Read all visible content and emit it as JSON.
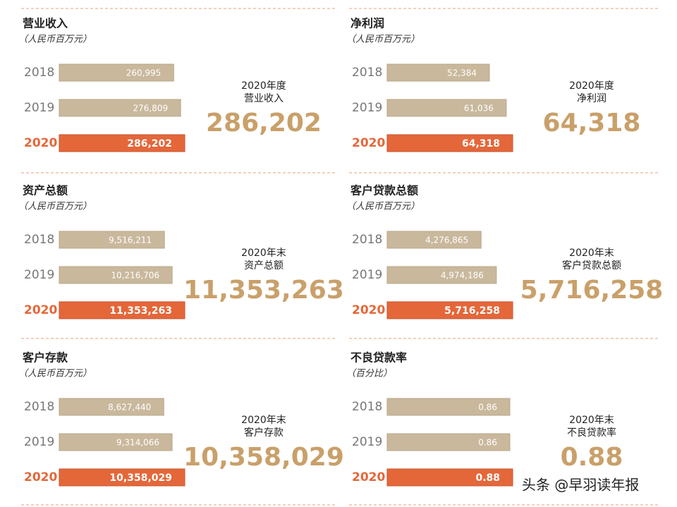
{
  "chart_data": [
    {
      "type": "bar",
      "title": "营业收入",
      "subtitle": "（人民币百万元）",
      "categories": [
        "2018",
        "2019",
        "2020"
      ],
      "values": [
        260995,
        276809,
        286202
      ],
      "value_labels": [
        "260,995",
        "276,809",
        "286,202"
      ],
      "headline": [
        "2020年度",
        "营业收入"
      ],
      "color": "#c9b89c",
      "highlight_color": "#e4673a"
    },
    {
      "type": "bar",
      "title": "净利润",
      "subtitle": "（人民币百万元）",
      "categories": [
        "2018",
        "2019",
        "2020"
      ],
      "values": [
        52384,
        61036,
        64318
      ],
      "value_labels": [
        "52,384",
        "61,036",
        "64,318"
      ],
      "headline": [
        "2020年度",
        "净利润"
      ],
      "color": "#c9b89c",
      "highlight_color": "#e4673a"
    },
    {
      "type": "bar",
      "title": "资产总额",
      "subtitle": "（人民币百万元）",
      "categories": [
        "2018",
        "2019",
        "2020"
      ],
      "values": [
        9516211,
        10216706,
        11353263
      ],
      "value_labels": [
        "9,516,211",
        "10,216,706",
        "11,353,263"
      ],
      "headline": [
        "2020年末",
        "资产总额"
      ],
      "color": "#c9b89c",
      "highlight_color": "#e4673a"
    },
    {
      "type": "bar",
      "title": "客户贷款总额",
      "subtitle": "（人民币百万元）",
      "categories": [
        "2018",
        "2019",
        "2020"
      ],
      "values": [
        4276865,
        4974186,
        5716258
      ],
      "value_labels": [
        "4,276,865",
        "4,974,186",
        "5,716,258"
      ],
      "headline": [
        "2020年末",
        "客户贷款总额"
      ],
      "color": "#c9b89c",
      "highlight_color": "#e4673a"
    },
    {
      "type": "bar",
      "title": "客户存款",
      "subtitle": "（人民币百万元）",
      "categories": [
        "2018",
        "2019",
        "2020"
      ],
      "values": [
        8627440,
        9314066,
        10358029
      ],
      "value_labels": [
        "8,627,440",
        "9,314,066",
        "10,358,029"
      ],
      "headline": [
        "2020年末",
        "客户存款"
      ],
      "color": "#c9b89c",
      "highlight_color": "#e4673a"
    },
    {
      "type": "bar",
      "title": "不良贷款率",
      "subtitle": "（百分比）",
      "categories": [
        "2018",
        "2019",
        "2020"
      ],
      "values": [
        0.86,
        0.86,
        0.88
      ],
      "headline": [
        "2020年末",
        "不良贷款率"
      ],
      "color": "#c9b89c",
      "highlight_color": "#e4673a"
    }
  ],
  "watermark": "头条 @早羽读年报"
}
